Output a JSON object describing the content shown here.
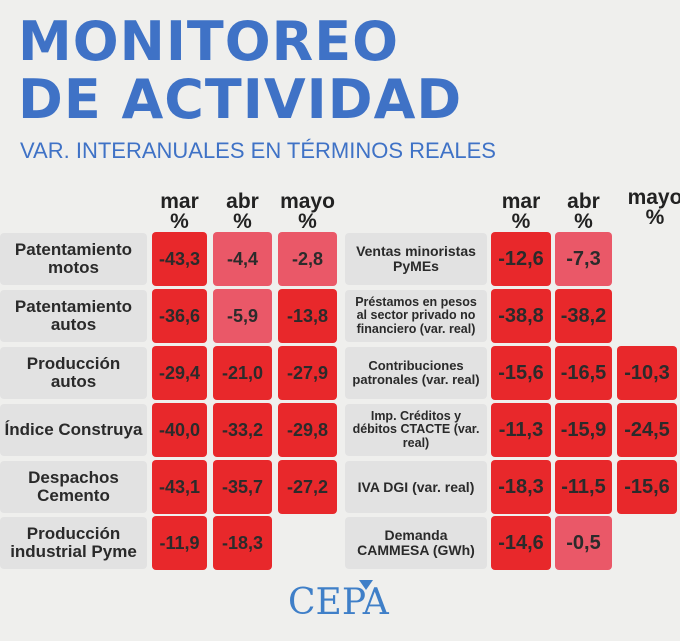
{
  "title_line1": "MONITOREO",
  "title_line2": "DE ACTIVIDAD",
  "subtitle": "VAR. INTERANUALES EN TÉRMINOS REALES",
  "logo": "CEPA",
  "colors": {
    "strong": "#e8282b",
    "mild": "#ea5868",
    "title": "#3f72c6"
  },
  "chart_data": {
    "type": "table",
    "columns": [
      {
        "month": "mar",
        "unit": "%"
      },
      {
        "month": "abr",
        "unit": "%"
      },
      {
        "month": "mayo",
        "unit": "%"
      }
    ],
    "tables": [
      {
        "rows": [
          {
            "label": "Patentamiento motos",
            "values": [
              "-43,3",
              "-4,4",
              "-2,8"
            ],
            "mild": [
              false,
              true,
              true
            ]
          },
          {
            "label": "Patentamiento autos",
            "values": [
              "-36,6",
              "-5,9",
              "-13,8"
            ],
            "mild": [
              false,
              true,
              false
            ]
          },
          {
            "label": "Producción autos",
            "values": [
              "-29,4",
              "-21,0",
              "-27,9"
            ],
            "mild": [
              false,
              false,
              false
            ]
          },
          {
            "label": "Índice Construya",
            "values": [
              "-40,0",
              "-33,2",
              "-29,8"
            ],
            "mild": [
              false,
              false,
              false
            ]
          },
          {
            "label": "Despachos Cemento",
            "values": [
              "-43,1",
              "-35,7",
              "-27,2"
            ],
            "mild": [
              false,
              false,
              false
            ]
          },
          {
            "label": "Producción industrial Pyme",
            "values": [
              "-11,9",
              "-18,3",
              null
            ],
            "mild": [
              false,
              false,
              false
            ]
          }
        ]
      },
      {
        "rows": [
          {
            "label": "Ventas minoristas PyMEs",
            "values": [
              "-12,6",
              "-7,3",
              null
            ],
            "mild": [
              false,
              true,
              false
            ]
          },
          {
            "label": "Préstamos en pesos al sector privado no financiero (var. real)",
            "values": [
              "-38,8",
              "-38,2",
              null
            ],
            "mild": [
              false,
              false,
              false
            ]
          },
          {
            "label": "Contribuciones patronales (var. real)",
            "values": [
              "-15,6",
              "-16,5",
              "-10,3"
            ],
            "mild": [
              false,
              false,
              false
            ]
          },
          {
            "label": "Imp. Créditos y débitos CTACTE (var. real)",
            "values": [
              "-11,3",
              "-15,9",
              "-24,5"
            ],
            "mild": [
              false,
              false,
              false
            ]
          },
          {
            "label": "IVA DGI (var. real)",
            "values": [
              "-18,3",
              "-11,5",
              "-15,6"
            ],
            "mild": [
              false,
              false,
              false
            ]
          },
          {
            "label": "Demanda CAMMESA (GWh)",
            "values": [
              "-14,6",
              "-0,5",
              null
            ],
            "mild": [
              false,
              true,
              false
            ]
          }
        ]
      }
    ]
  }
}
